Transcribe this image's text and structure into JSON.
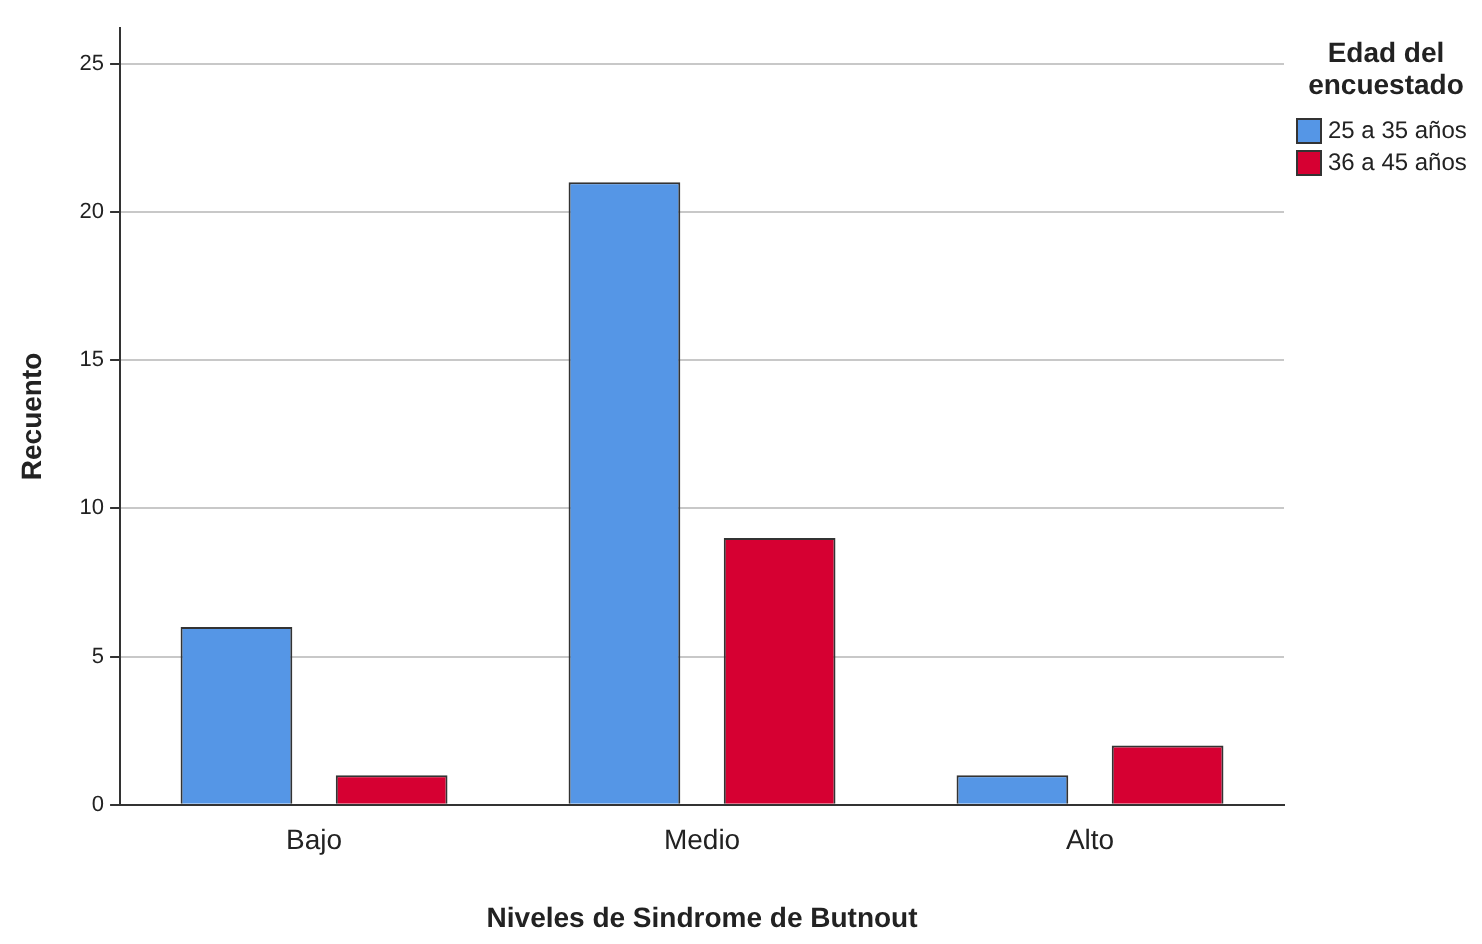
{
  "chart_data": {
    "type": "bar",
    "xlabel": "Niveles de Sindrome de Butnout",
    "ylabel": "Recuento",
    "legend_title": "Edad del encuestado",
    "legend": "top right",
    "grid": "y",
    "categories": [
      "Bajo",
      "Medio",
      "Alto"
    ],
    "series": [
      {
        "name": "25 a 35 años",
        "color": "#5596e6",
        "values": [
          6,
          21,
          1
        ]
      },
      {
        "name": "36 a 45 años",
        "color": "#d60032",
        "values": [
          1,
          9,
          2
        ]
      }
    ],
    "ylim": [
      0,
      26.2
    ],
    "yticks": [
      0,
      5,
      10,
      15,
      20,
      25
    ]
  }
}
